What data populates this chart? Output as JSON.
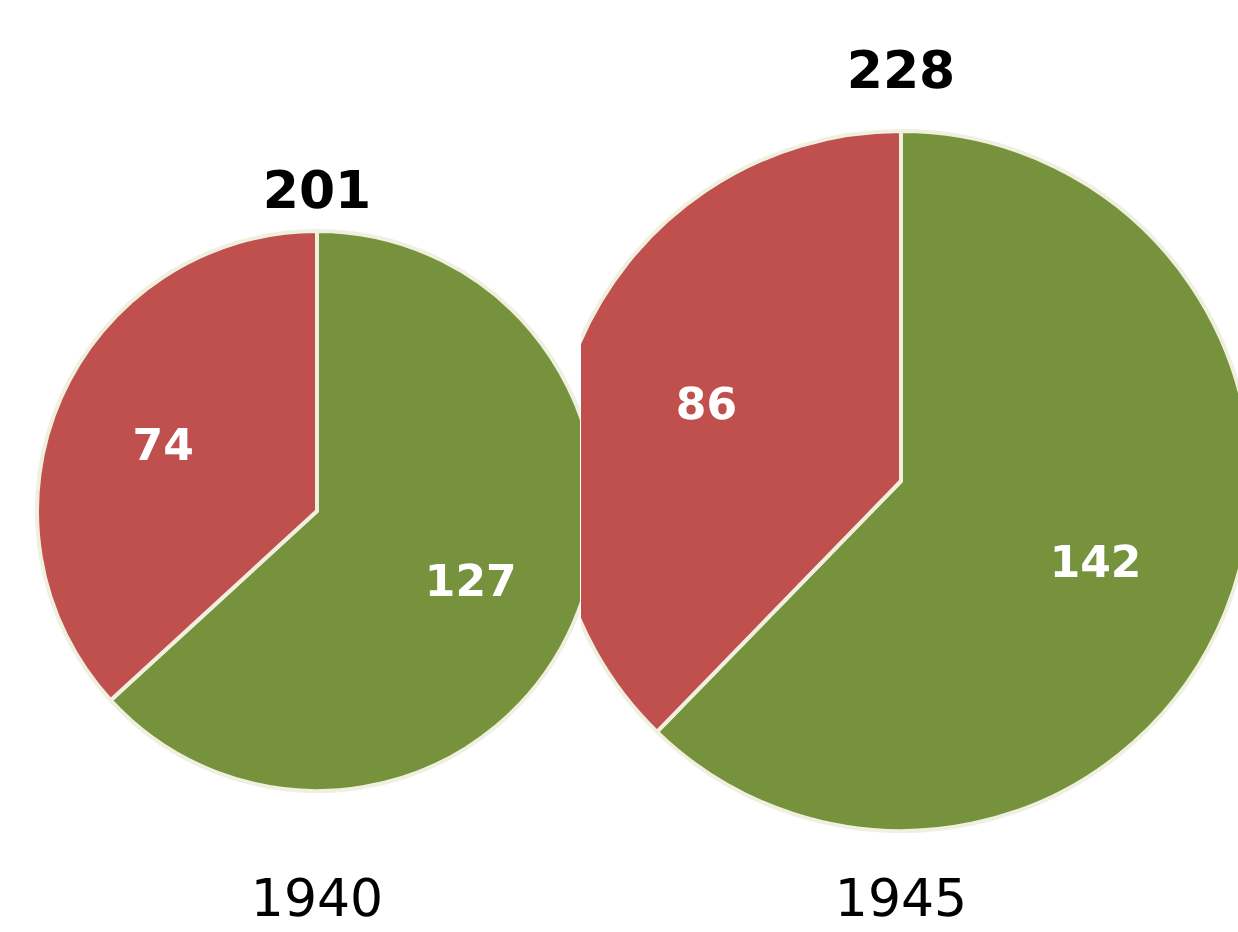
{
  "chart_data": [
    {
      "type": "pie",
      "title": "201",
      "xlabel": "1940",
      "categories": [
        null,
        null
      ],
      "values": [
        127,
        74
      ],
      "colors": [
        "#76923c",
        "#c0504d"
      ],
      "data_labels": true
    },
    {
      "type": "pie",
      "title": "228",
      "xlabel": "1945",
      "categories": [
        null,
        null
      ],
      "values": [
        142,
        86
      ],
      "colors": [
        "#76923c",
        "#c0504d"
      ],
      "data_labels": true
    }
  ]
}
